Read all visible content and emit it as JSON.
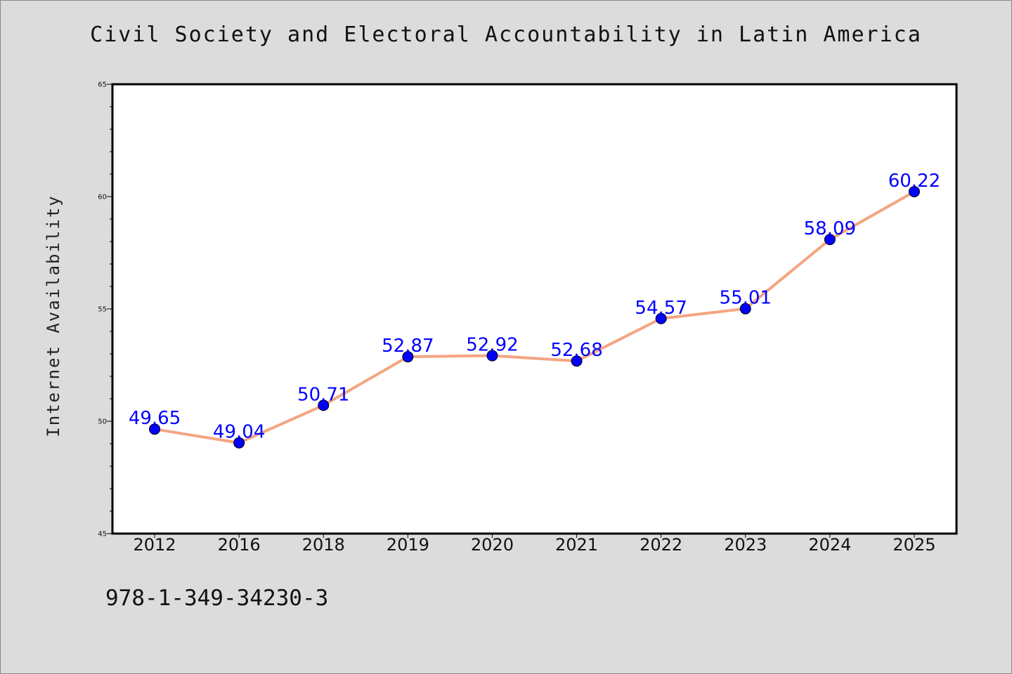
{
  "chart_data": {
    "type": "line",
    "title": "Civil Society and Electoral Accountability in Latin America",
    "xlabel": "",
    "ylabel": "Internet Availability",
    "categories": [
      "2012",
      "2016",
      "2018",
      "2019",
      "2020",
      "2021",
      "2022",
      "2023",
      "2024",
      "2025"
    ],
    "series": [
      {
        "values": [
          49.65,
          49.04,
          50.71,
          52.87,
          52.92,
          52.68,
          54.57,
          55.01,
          58.09,
          60.22
        ],
        "labels": [
          "49.65",
          "49.04",
          "50.71",
          "52.87",
          "52.92",
          "52.68",
          "54.57",
          "55.01",
          "58.09",
          "60.22"
        ],
        "line_color": "#f4a582",
        "marker_color": "#0000ff",
        "label_color": "#0000ff"
      }
    ],
    "ylim": [
      45,
      65
    ],
    "yticks": [
      "45",
      "50",
      "55",
      "60",
      "65"
    ],
    "grid": false,
    "legend": "none"
  },
  "footer": {
    "code": "978-1-349-34230-3"
  },
  "colors": {
    "background": "#dcdcdc",
    "plot_background": "#ffffff"
  }
}
